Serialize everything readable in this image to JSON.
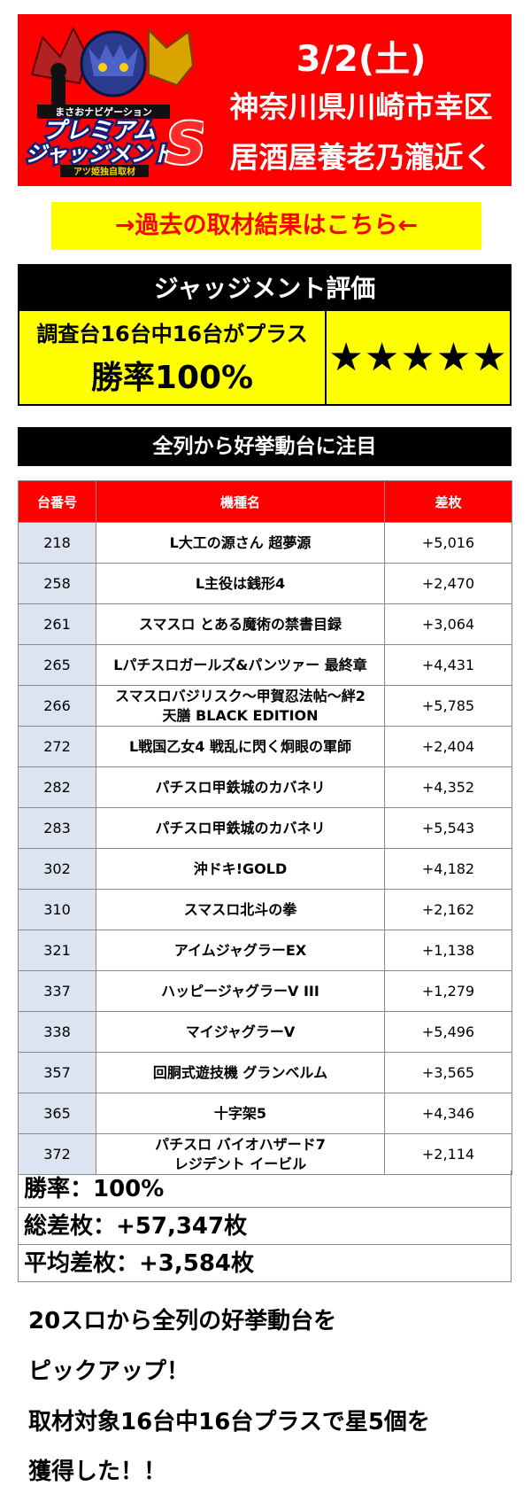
{
  "header": {
    "logo_text_small": "まさおナビゲーション",
    "logo_text_main_1": "プレミアム",
    "logo_text_main_2": "ジャッジメント",
    "logo_letter": "S",
    "logo_tagline": "アツ姫独自取材",
    "date": "3/2(土)",
    "location": "神奈川県川崎市幸区",
    "near": "居酒屋養老乃瀧近く",
    "bg_color": "#ff0000"
  },
  "past_results_link": "→過去の取材結果はこちら←",
  "evaluation": {
    "title": "ジャッジメント評価",
    "summary": "調査台16台中16台がプラス",
    "win_rate": "勝率100%",
    "stars": "★★★★★"
  },
  "section_title": "全列から好挙動台に注目",
  "table": {
    "headers": [
      "台番号",
      "機種名",
      "差枚"
    ],
    "rows": [
      {
        "no": "218",
        "name": "L大工の源さん 超夢源",
        "diff": "+5,016"
      },
      {
        "no": "258",
        "name": "L主役は銭形4",
        "diff": "+2,470"
      },
      {
        "no": "261",
        "name": "スマスロ とある魔術の禁書目録",
        "diff": "+3,064"
      },
      {
        "no": "265",
        "name": "Lパチスロガールズ&パンツァー 最終章",
        "diff": "+4,431"
      },
      {
        "no": "266",
        "name": "スマスロバジリスク～甲賀忍法帖～絆2",
        "name2": "天膳 BLACK EDITION",
        "diff": "+5,785"
      },
      {
        "no": "272",
        "name": "L戦国乙女4 戦乱に閃く炯眼の軍師",
        "diff": "+2,404"
      },
      {
        "no": "282",
        "name": "パチスロ甲鉄城のカバネリ",
        "diff": "+4,352"
      },
      {
        "no": "283",
        "name": "パチスロ甲鉄城のカバネリ",
        "diff": "+5,543"
      },
      {
        "no": "302",
        "name": "沖ドキ!GOLD",
        "diff": "+4,182"
      },
      {
        "no": "310",
        "name": "スマスロ北斗の拳",
        "diff": "+2,162"
      },
      {
        "no": "321",
        "name": "アイムジャグラーEX",
        "diff": "+1,138"
      },
      {
        "no": "337",
        "name": "ハッピージャグラーV III",
        "diff": "+1,279"
      },
      {
        "no": "338",
        "name": "マイジャグラーV",
        "diff": "+5,496"
      },
      {
        "no": "357",
        "name": "回胴式遊技機 グランベルム",
        "diff": "+3,565"
      },
      {
        "no": "365",
        "name": "十字架5",
        "diff": "+4,346"
      },
      {
        "no": "372",
        "name": "パチスロ バイオハザード7",
        "name2": "レジデント イービル",
        "diff": "+2,114"
      }
    ]
  },
  "totals": {
    "win_rate": "勝率：100%",
    "total_diff": "総差枚：+57,347枚",
    "avg_diff": "平均差枚：+3,584枚"
  },
  "footer": {
    "line1": "20スロから全列の好挙動台を",
    "line2": "ピックアップ！",
    "line3": "取材対象16台中16台プラスで星5個を",
    "line4": "獲得した！！"
  }
}
